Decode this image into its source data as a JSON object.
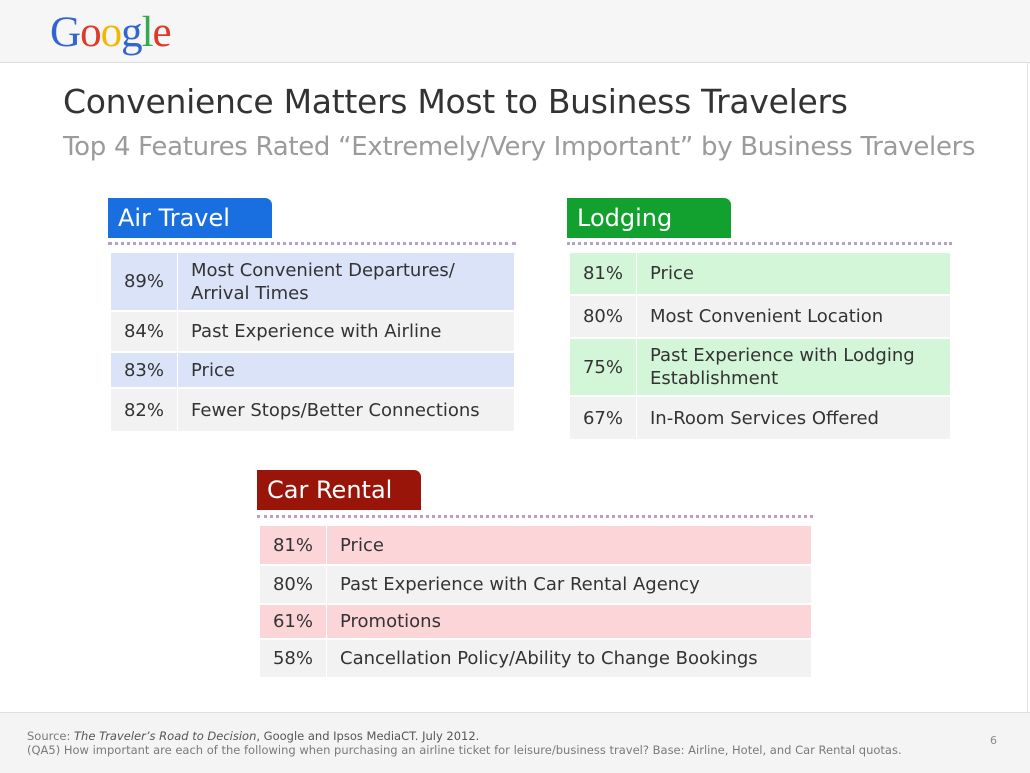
{
  "logo": {
    "letters": [
      {
        "ch": "G",
        "color": "#3366cc"
      },
      {
        "ch": "o",
        "color": "#dd3a2a"
      },
      {
        "ch": "o",
        "color": "#f0b800"
      },
      {
        "ch": "g",
        "color": "#3366cc"
      },
      {
        "ch": "l",
        "color": "#34a853"
      },
      {
        "ch": "e",
        "color": "#dd3a2a"
      }
    ],
    "text": "Google"
  },
  "title": "Convenience Matters Most to Business Travelers",
  "subtitle": "Top 4 Features Rated “Extremely/Very Important” by Business Travelers",
  "sections": [
    {
      "key": "air",
      "heading": "Air Travel",
      "tab_color": "#1a6fe0",
      "highlight_color": "#dbe3f9",
      "plain_color": "#f2f2f2",
      "rows": [
        {
          "pct": "89%",
          "label": "Most Convenient Departures/ Arrival Times"
        },
        {
          "pct": "84%",
          "label": "Past Experience with Airline"
        },
        {
          "pct": "83%",
          "label": "Price"
        },
        {
          "pct": "82%",
          "label": "Fewer Stops/Better Connections"
        }
      ]
    },
    {
      "key": "lodging",
      "heading": "Lodging",
      "tab_color": "#12a02e",
      "highlight_color": "#d3f5d8",
      "plain_color": "#f2f2f2",
      "rows": [
        {
          "pct": "81%",
          "label": "Price"
        },
        {
          "pct": "80%",
          "label": "Most Convenient Location"
        },
        {
          "pct": "75%",
          "label": "Past Experience with Lodging Establishment"
        },
        {
          "pct": "67%",
          "label": "In-Room Services Offered"
        }
      ]
    },
    {
      "key": "car",
      "heading": "Car Rental",
      "tab_color": "#9a1509",
      "highlight_color": "#fcd5d9",
      "plain_color": "#f2f2f2",
      "rows": [
        {
          "pct": "81%",
          "label": "Price"
        },
        {
          "pct": "80%",
          "label": "Past Experience with Car Rental Agency"
        },
        {
          "pct": "61%",
          "label": "Promotions"
        },
        {
          "pct": "58%",
          "label": "Cancellation Policy/Ability to Change Bookings"
        }
      ]
    }
  ],
  "footer": {
    "source_prefix": "Source: ",
    "source_title": "The Traveler’s Road to Decision",
    "source_rest": ", Google and Ipsos MediaCT. July 2012.",
    "question": "(QA5) How important are each of the following when purchasing an airline ticket for leisure/business travel? Base: Airline, Hotel, and Car Rental quotas.",
    "page_number": "6"
  }
}
